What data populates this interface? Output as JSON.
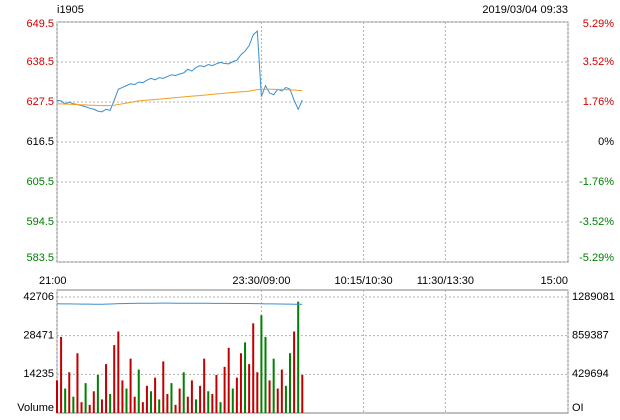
{
  "chart_data": [
    {
      "type": "line",
      "title": "i1905",
      "subtitle": "2019/03/04 09:33",
      "x": [
        0,
        3,
        6,
        9,
        12,
        15,
        18,
        21,
        24,
        27,
        30,
        33,
        36,
        39,
        42,
        45,
        48,
        51,
        54,
        57,
        60,
        63,
        66,
        69,
        72,
        75,
        78,
        81,
        84,
        87,
        90,
        93,
        96,
        99,
        102,
        105,
        108,
        111,
        114,
        117,
        120,
        123,
        126,
        129,
        132,
        135,
        138,
        141,
        144,
        147,
        150,
        153,
        156,
        159,
        162,
        165,
        168,
        171,
        174,
        177,
        180
      ],
      "series": [
        {
          "name": "price",
          "color": "#3a8fd0",
          "values": [
            628,
            627.8,
            627,
            627.5,
            627,
            626.8,
            626.5,
            626.2,
            625.8,
            625.5,
            625,
            624.8,
            625.5,
            625.2,
            628,
            631,
            631.5,
            632,
            632.5,
            632.3,
            633,
            632.8,
            633.5,
            634,
            633.6,
            634.2,
            634,
            634.5,
            635,
            634.8,
            635.2,
            635.5,
            636.5,
            636,
            637,
            637.5,
            637.2,
            637.8,
            637.5,
            638,
            638.4,
            638.1,
            638,
            638.6,
            639,
            640.5,
            641.5,
            643,
            646,
            647,
            629,
            632,
            630,
            629.5,
            631,
            630.5,
            631.5,
            631,
            628,
            625.5,
            628
          ]
        },
        {
          "name": "average",
          "color": "#f0a020",
          "values": [
            627,
            627,
            626.9,
            626.9,
            626.8,
            626.8,
            626.7,
            626.7,
            626.6,
            626.6,
            626.5,
            626.5,
            626.5,
            626.5,
            626.6,
            626.8,
            627,
            627.2,
            627.4,
            627.6,
            627.8,
            627.9,
            628,
            628.1,
            628.2,
            628.3,
            628.4,
            628.5,
            628.6,
            628.7,
            628.8,
            628.9,
            629,
            629.1,
            629.2,
            629.3,
            629.4,
            629.5,
            629.6,
            629.7,
            629.8,
            629.9,
            630,
            630.1,
            630.2,
            630.3,
            630.4,
            630.5,
            630.7,
            630.9,
            631,
            631,
            631,
            631,
            630.9,
            630.9,
            630.9,
            630.8,
            630.8,
            630.7,
            630.6
          ]
        }
      ],
      "xlim": [
        0,
        375
      ],
      "xticks": [
        {
          "value": 0,
          "label": "21:00"
        },
        {
          "value": 150,
          "label": "23:30/09:00"
        },
        {
          "value": 225,
          "label": "10:15/10:30"
        },
        {
          "value": 285,
          "label": "11:30/13:30"
        },
        {
          "value": 375,
          "label": "15:00"
        }
      ],
      "ylim": [
        583.5,
        649.5
      ],
      "yticks": [
        649.5,
        638.5,
        627.5,
        616.5,
        605.5,
        594.5,
        583.5
      ],
      "ytick_colors": [
        "#d00000",
        "#d00000",
        "#d00000",
        "#000000",
        "#008000",
        "#008000",
        "#008000"
      ],
      "y2ticks": [
        {
          "value": 5.29,
          "label": "5.29%"
        },
        {
          "value": 3.52,
          "label": "3.52%"
        },
        {
          "value": 1.76,
          "label": "1.76%"
        },
        {
          "value": 0,
          "label": "0%"
        },
        {
          "value": -1.76,
          "label": "-1.76%"
        },
        {
          "value": -3.52,
          "label": "-3.52%"
        },
        {
          "value": -5.29,
          "label": "-5.29%"
        }
      ],
      "y2lim": [
        -5.29,
        5.29
      ]
    },
    {
      "type": "bar",
      "ylabel": "Volume",
      "y2label": "OI",
      "x": [
        0,
        3,
        6,
        9,
        12,
        15,
        18,
        21,
        24,
        27,
        30,
        33,
        36,
        39,
        42,
        45,
        48,
        51,
        54,
        57,
        60,
        63,
        66,
        69,
        72,
        75,
        78,
        81,
        84,
        87,
        90,
        93,
        96,
        99,
        102,
        105,
        108,
        111,
        114,
        117,
        120,
        123,
        126,
        129,
        132,
        135,
        138,
        141,
        144,
        147,
        150,
        153,
        156,
        159,
        162,
        165,
        168,
        171,
        174,
        177,
        180
      ],
      "xlim": [
        0,
        375
      ],
      "xticks": [
        0,
        150,
        225,
        285,
        375
      ],
      "values": [
        12000,
        28000,
        9000,
        15000,
        6000,
        22000,
        4000,
        11000,
        3000,
        8000,
        14000,
        5000,
        18000,
        7000,
        25000,
        30000,
        12000,
        9000,
        20000,
        6000,
        16000,
        4000,
        10000,
        8000,
        13000,
        5000,
        19000,
        7000,
        11000,
        3000,
        9000,
        15000,
        6000,
        12000,
        5000,
        10000,
        20000,
        8000,
        7000,
        14000,
        4000,
        17000,
        24000,
        9000,
        13000,
        22000,
        26000,
        18000,
        33000,
        15000,
        36000,
        28000,
        12000,
        20000,
        9000,
        16000,
        10000,
        22000,
        30000,
        41000,
        14000
      ],
      "colors": [
        "#c00000",
        "#c00000",
        "#008000",
        "#c00000",
        "#008000",
        "#c00000",
        "#c00000",
        "#008000",
        "#c00000",
        "#c00000",
        "#008000",
        "#c00000",
        "#c00000",
        "#008000",
        "#c00000",
        "#c00000",
        "#c00000",
        "#008000",
        "#c00000",
        "#c00000",
        "#008000",
        "#c00000",
        "#c00000",
        "#008000",
        "#c00000",
        "#008000",
        "#c00000",
        "#c00000",
        "#008000",
        "#c00000",
        "#c00000",
        "#008000",
        "#c00000",
        "#c00000",
        "#008000",
        "#c00000",
        "#c00000",
        "#008000",
        "#c00000",
        "#c00000",
        "#008000",
        "#c00000",
        "#c00000",
        "#008000",
        "#c00000",
        "#c00000",
        "#008000",
        "#c00000",
        "#c00000",
        "#c00000",
        "#008000",
        "#008000",
        "#c00000",
        "#008000",
        "#c00000",
        "#c00000",
        "#008000",
        "#008000",
        "#c00000",
        "#008000",
        "#c00000"
      ],
      "ylim": [
        0,
        42706
      ],
      "yticks": [
        42706,
        28471,
        14235
      ],
      "oi": {
        "color": "#3a8fd0",
        "values": [
          1214000,
          1213000,
          1212000,
          1212000,
          1211000,
          1211000,
          1210000,
          1210000,
          1210000,
          1209000,
          1209000,
          1209000,
          1210000,
          1211000,
          1213000,
          1215000,
          1216000,
          1217000,
          1218000,
          1218000,
          1219000,
          1219000,
          1220000,
          1220000,
          1220000,
          1221000,
          1221000,
          1221000,
          1221000,
          1220000,
          1220000,
          1220000,
          1220000,
          1219000,
          1219000,
          1219000,
          1219000,
          1219000,
          1218000,
          1218000,
          1218000,
          1218000,
          1218000,
          1217000,
          1217000,
          1217000,
          1217000,
          1217000,
          1216000,
          1216000,
          1214000,
          1213000,
          1212000,
          1212000,
          1211000,
          1211000,
          1210000,
          1210000,
          1209000,
          1208000,
          1208000
        ]
      },
      "y2lim": [
        0,
        1289081
      ],
      "y2ticks": [
        1289081,
        859387,
        429694
      ]
    }
  ]
}
